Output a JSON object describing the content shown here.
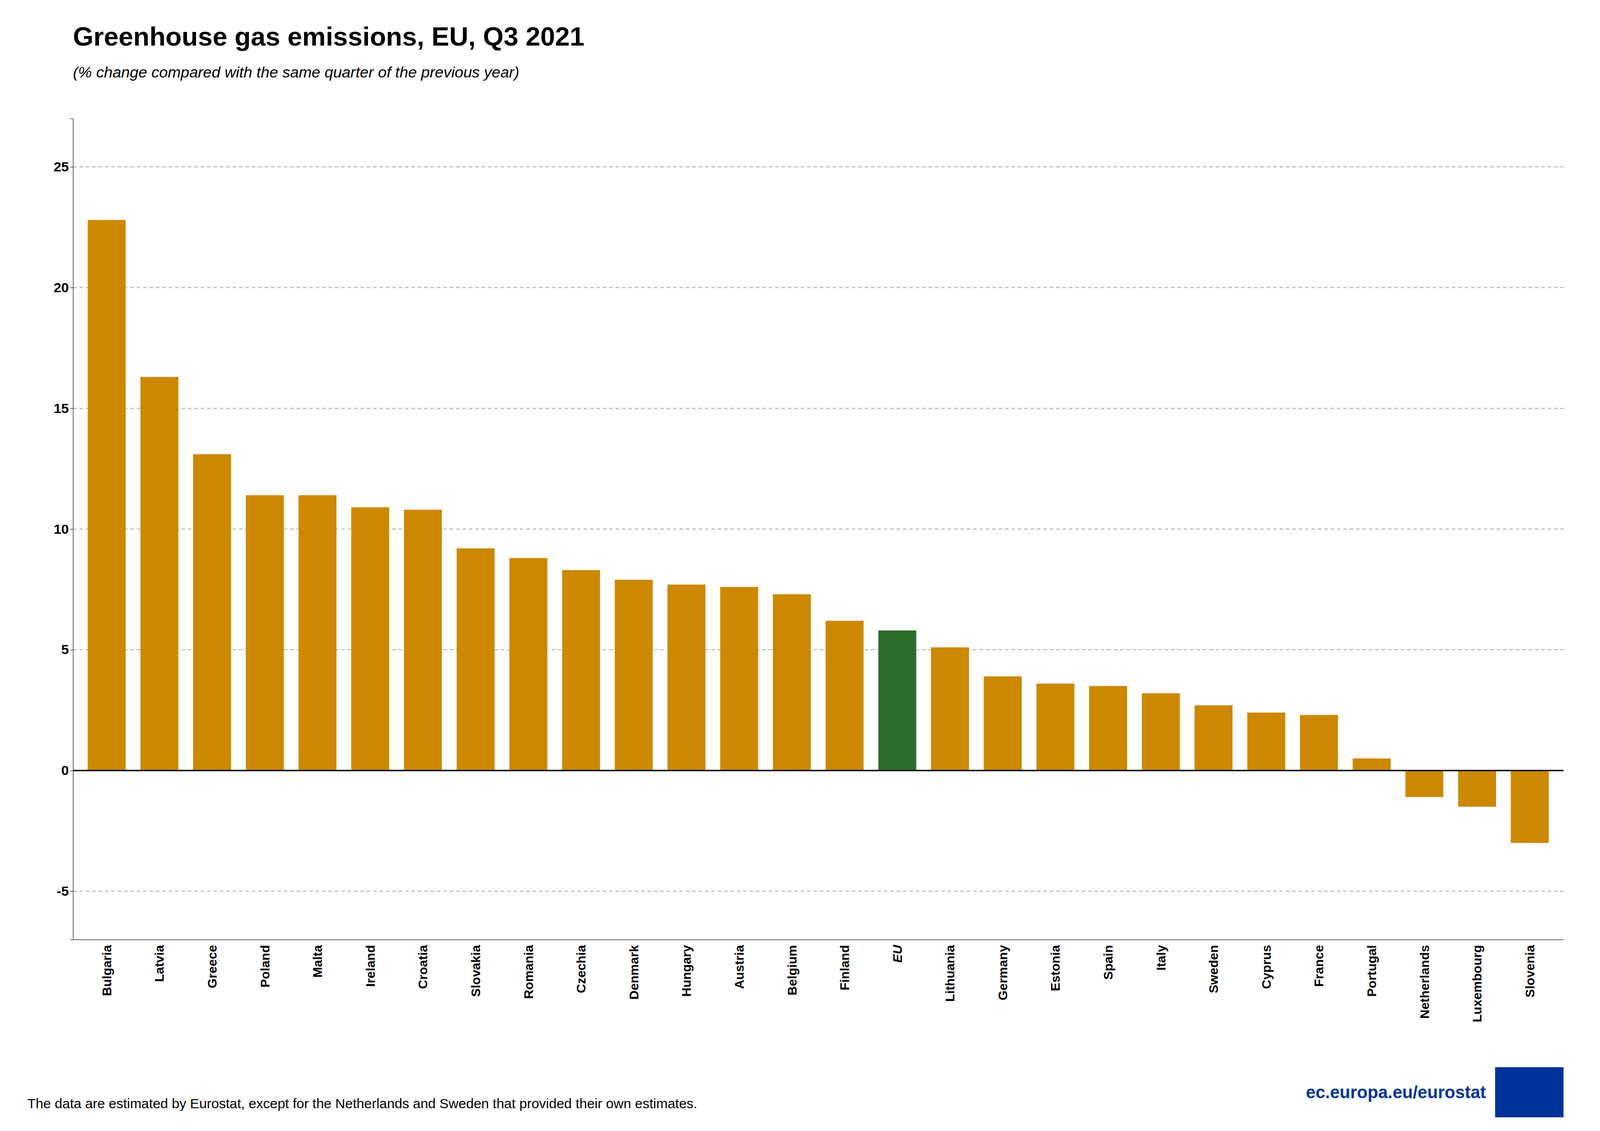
{
  "chart_data": {
    "type": "bar",
    "title": "Greenhouse gas emissions, EU, Q3 2021",
    "subtitle": "(% change compared with the same quarter of the previous year)",
    "categories": [
      "Bulgaria",
      "Latvia",
      "Greece",
      "Poland",
      "Malta",
      "Ireland",
      "Croatia",
      "Slovakia",
      "Romania",
      "Czechia",
      "Denmark",
      "Hungary",
      "Austria",
      "Belgium",
      "Finland",
      "EU",
      "Lithuania",
      "Germany",
      "Estonia",
      "Spain",
      "Italy",
      "Sweden",
      "Cyprus",
      "France",
      "Portugal",
      "Netherlands",
      "Luxembourg",
      "Slovenia"
    ],
    "values": [
      22.8,
      16.3,
      13.1,
      11.4,
      11.4,
      10.9,
      10.8,
      9.2,
      8.8,
      8.3,
      7.9,
      7.7,
      7.6,
      7.3,
      6.2,
      5.8,
      5.1,
      3.9,
      3.6,
      3.5,
      3.2,
      2.7,
      2.4,
      2.3,
      0.5,
      -1.1,
      -1.5,
      -3.0
    ],
    "colors": [
      "#CC8800",
      "#CC8800",
      "#CC8800",
      "#CC8800",
      "#CC8800",
      "#CC8800",
      "#CC8800",
      "#CC8800",
      "#CC8800",
      "#CC8800",
      "#CC8800",
      "#CC8800",
      "#CC8800",
      "#CC8800",
      "#CC8800",
      "#2D6E2D",
      "#CC8800",
      "#CC8800",
      "#CC8800",
      "#CC8800",
      "#CC8800",
      "#CC8800",
      "#CC8800",
      "#CC8800",
      "#CC8800",
      "#CC8800",
      "#CC8800",
      "#CC8800"
    ],
    "ylim": [
      -7,
      27
    ],
    "yticks": [
      -5,
      0,
      5,
      10,
      15,
      20,
      25
    ],
    "grid": true,
    "annotations": [
      "The data are estimated by Eurostat, except for the Netherlands and Sweden that provided their own estimates.",
      "ec.europa.eu/eurostat"
    ]
  }
}
